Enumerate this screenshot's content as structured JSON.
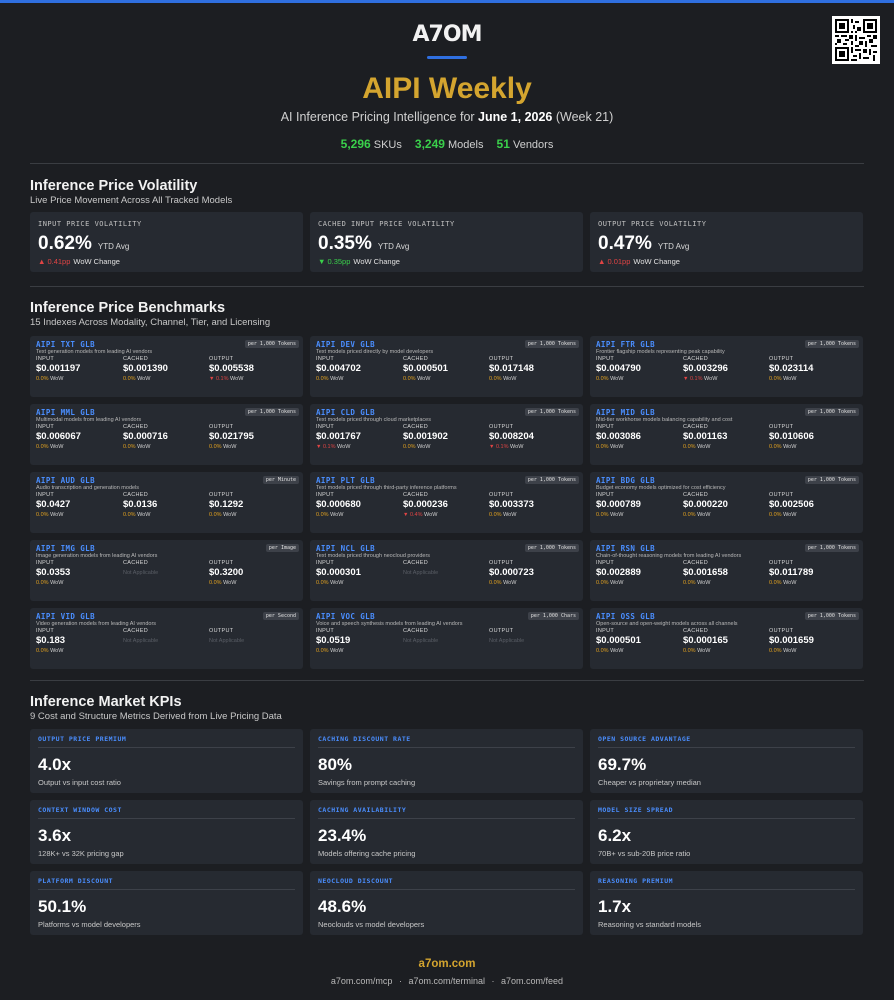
{
  "header": {
    "logo": "A7OM",
    "title": "AIPI Weekly",
    "subtitle_prefix": "AI Inference Pricing Intelligence for ",
    "subtitle_date": "June 1, 2026",
    "subtitle_suffix": " (Week 21)",
    "stats": [
      {
        "num": "5,296",
        "label": "SKUs"
      },
      {
        "num": "3,249",
        "label": "Models"
      },
      {
        "num": "51",
        "label": "Vendors"
      }
    ]
  },
  "volatility": {
    "title": "Inference Price Volatility",
    "subtitle": "Live Price Movement Across All Tracked Models",
    "cards": [
      {
        "label": "INPUT PRICE VOLATILITY",
        "value": "0.62%",
        "ytd": "YTD Avg",
        "arrow": "▲",
        "change": "0.41pp",
        "dir": "up",
        "wow": "WoW Change"
      },
      {
        "label": "CACHED INPUT PRICE VOLATILITY",
        "value": "0.35%",
        "ytd": "YTD Avg",
        "arrow": "▼",
        "change": "0.35pp",
        "dir": "down",
        "wow": "WoW Change"
      },
      {
        "label": "OUTPUT PRICE VOLATILITY",
        "value": "0.47%",
        "ytd": "YTD Avg",
        "arrow": "▲",
        "change": "0.01pp",
        "dir": "up",
        "wow": "WoW Change"
      }
    ]
  },
  "benchmarks": {
    "title": "Inference Price Benchmarks",
    "subtitle": "15 Indexes Across Modality, Channel, Tier, and Licensing",
    "col_labels": [
      "INPUT",
      "CACHED",
      "OUTPUT"
    ],
    "cards": [
      {
        "name": "AIPI TXT GLB",
        "badge": "per 1,000 Tokens",
        "desc": "Text generation models from leading AI vendors",
        "cols": [
          {
            "v": "$0.001197",
            "c": "0.0% WoW",
            "d": "flat"
          },
          {
            "v": "$0.001390",
            "c": "0.0% WoW",
            "d": "flat"
          },
          {
            "v": "$0.005538",
            "c": "▼ 0.1% WoW",
            "d": "up"
          }
        ]
      },
      {
        "name": "AIPI DEV GLB",
        "badge": "per 1,000 Tokens",
        "desc": "Text models priced directly by model developers",
        "cols": [
          {
            "v": "$0.004702",
            "c": "0.0% WoW",
            "d": "flat"
          },
          {
            "v": "$0.000501",
            "c": "0.0% WoW",
            "d": "flat"
          },
          {
            "v": "$0.017148",
            "c": "0.0% WoW",
            "d": "flat"
          }
        ]
      },
      {
        "name": "AIPI FTR GLB",
        "badge": "per 1,000 Tokens",
        "desc": "Frontier flagship models representing peak capability",
        "cols": [
          {
            "v": "$0.004790",
            "c": "0.0% WoW",
            "d": "flat"
          },
          {
            "v": "$0.003296",
            "c": "▼ 0.1% WoW",
            "d": "up"
          },
          {
            "v": "$0.023114",
            "c": "0.0% WoW",
            "d": "flat"
          }
        ]
      },
      {
        "name": "AIPI MML GLB",
        "badge": "per 1,000 Tokens",
        "desc": "Multimodal models from leading AI vendors",
        "cols": [
          {
            "v": "$0.006067",
            "c": "0.0% WoW",
            "d": "flat"
          },
          {
            "v": "$0.000716",
            "c": "0.0% WoW",
            "d": "flat"
          },
          {
            "v": "$0.021795",
            "c": "0.0% WoW",
            "d": "flat"
          }
        ]
      },
      {
        "name": "AIPI CLD GLB",
        "badge": "per 1,000 Tokens",
        "desc": "Text models priced through cloud marketplaces",
        "cols": [
          {
            "v": "$0.001767",
            "c": "▼ 0.1% WoW",
            "d": "up"
          },
          {
            "v": "$0.001902",
            "c": "0.0% WoW",
            "d": "flat"
          },
          {
            "v": "$0.008204",
            "c": "▼ 0.1% WoW",
            "d": "up"
          }
        ]
      },
      {
        "name": "AIPI MID GLB",
        "badge": "per 1,000 Tokens",
        "desc": "Mid-tier workhorse models balancing capability and cost",
        "cols": [
          {
            "v": "$0.003086",
            "c": "0.0% WoW",
            "d": "flat"
          },
          {
            "v": "$0.001163",
            "c": "0.0% WoW",
            "d": "flat"
          },
          {
            "v": "$0.010606",
            "c": "0.0% WoW",
            "d": "flat"
          }
        ]
      },
      {
        "name": "AIPI AUD GLB",
        "badge": "per Minute",
        "desc": "Audio transcription and generation models",
        "cols": [
          {
            "v": "$0.0427",
            "c": "0.0% WoW",
            "d": "flat"
          },
          {
            "v": "$0.0136",
            "c": "0.0% WoW",
            "d": "flat"
          },
          {
            "v": "$0.1292",
            "c": "0.0% WoW",
            "d": "flat"
          }
        ]
      },
      {
        "name": "AIPI PLT GLB",
        "badge": "per 1,000 Tokens",
        "desc": "Text models priced through third-party inference platforms",
        "cols": [
          {
            "v": "$0.000680",
            "c": "0.0% WoW",
            "d": "flat"
          },
          {
            "v": "$0.000236",
            "c": "▼ 0.4% WoW",
            "d": "up"
          },
          {
            "v": "$0.003373",
            "c": "0.0% WoW",
            "d": "flat"
          }
        ]
      },
      {
        "name": "AIPI BDG GLB",
        "badge": "per 1,000 Tokens",
        "desc": "Budget economy models optimized for cost efficiency",
        "cols": [
          {
            "v": "$0.000789",
            "c": "0.0% WoW",
            "d": "flat"
          },
          {
            "v": "$0.000220",
            "c": "0.0% WoW",
            "d": "flat"
          },
          {
            "v": "$0.002506",
            "c": "0.0% WoW",
            "d": "flat"
          }
        ]
      },
      {
        "name": "AIPI IMG GLB",
        "badge": "per Image",
        "desc": "Image generation models from leading AI vendors",
        "cols": [
          {
            "v": "$0.0353",
            "c": "0.0% WoW",
            "d": "flat"
          },
          {
            "v": "Not Applicable",
            "c": "",
            "d": "na"
          },
          {
            "v": "$0.3200",
            "c": "0.0% WoW",
            "d": "flat"
          }
        ]
      },
      {
        "name": "AIPI NCL GLB",
        "badge": "per 1,000 Tokens",
        "desc": "Text models priced through neocloud providers",
        "cols": [
          {
            "v": "$0.000301",
            "c": "0.0% WoW",
            "d": "flat"
          },
          {
            "v": "Not Applicable",
            "c": "",
            "d": "na"
          },
          {
            "v": "$0.000723",
            "c": "0.0% WoW",
            "d": "flat"
          }
        ]
      },
      {
        "name": "AIPI RSN GLB",
        "badge": "per 1,000 Tokens",
        "desc": "Chain-of-thought reasoning models from leading AI vendors",
        "cols": [
          {
            "v": "$0.002889",
            "c": "0.0% WoW",
            "d": "flat"
          },
          {
            "v": "$0.001658",
            "c": "0.0% WoW",
            "d": "flat"
          },
          {
            "v": "$0.011789",
            "c": "0.0% WoW",
            "d": "flat"
          }
        ]
      },
      {
        "name": "AIPI VID GLB",
        "badge": "per Second",
        "desc": "Video generation models from leading AI vendors",
        "cols": [
          {
            "v": "$0.183",
            "c": "0.0% WoW",
            "d": "flat"
          },
          {
            "v": "Not Applicable",
            "c": "",
            "d": "na"
          },
          {
            "v": "Not Applicable",
            "c": "",
            "d": "na"
          }
        ]
      },
      {
        "name": "AIPI VOC GLB",
        "badge": "per 1,000 Chars",
        "desc": "Voice and speech synthesis models from leading AI vendors",
        "cols": [
          {
            "v": "$0.0519",
            "c": "0.0% WoW",
            "d": "flat"
          },
          {
            "v": "Not Applicable",
            "c": "",
            "d": "na"
          },
          {
            "v": "Not Applicable",
            "c": "",
            "d": "na"
          }
        ]
      },
      {
        "name": "AIPI OSS GLB",
        "badge": "per 1,000 Tokens",
        "desc": "Open-source and open-weight models across all channels",
        "cols": [
          {
            "v": "$0.000501",
            "c": "0.0% WoW",
            "d": "flat"
          },
          {
            "v": "$0.000165",
            "c": "0.0% WoW",
            "d": "flat"
          },
          {
            "v": "$0.001659",
            "c": "0.0% WoW",
            "d": "flat"
          }
        ]
      }
    ]
  },
  "kpis": {
    "title": "Inference Market KPIs",
    "subtitle": "9 Cost and Structure Metrics Derived from Live Pricing Data",
    "cards": [
      {
        "name": "OUTPUT PRICE PREMIUM",
        "value": "4.0x",
        "desc": "Output vs input cost ratio"
      },
      {
        "name": "CACHING DISCOUNT RATE",
        "value": "80%",
        "desc": "Savings from prompt caching"
      },
      {
        "name": "OPEN SOURCE ADVANTAGE",
        "value": "69.7%",
        "desc": "Cheaper vs proprietary median"
      },
      {
        "name": "CONTEXT WINDOW COST",
        "value": "3.6x",
        "desc": "128K+ vs 32K pricing gap"
      },
      {
        "name": "CACHING AVAILABILITY",
        "value": "23.4%",
        "desc": "Models offering cache pricing"
      },
      {
        "name": "MODEL SIZE SPREAD",
        "value": "6.2x",
        "desc": "70B+ vs sub-20B price ratio"
      },
      {
        "name": "PLATFORM DISCOUNT",
        "value": "50.1%",
        "desc": "Platforms vs model developers"
      },
      {
        "name": "NEOCLOUD DISCOUNT",
        "value": "48.6%",
        "desc": "Neoclouds vs model developers"
      },
      {
        "name": "REASONING PREMIUM",
        "value": "1.7x",
        "desc": "Reasoning vs standard models"
      }
    ]
  },
  "footer": {
    "site": "a7om.com",
    "links": [
      "a7om.com/mcp",
      "a7om.com/terminal",
      "a7om.com/feed"
    ],
    "separator": "·"
  },
  "colors": {
    "accent": "#2f6fe0",
    "gold": "#d4a52f",
    "up": "#e04444",
    "down": "#3ad04b",
    "flat": "#e0a020",
    "index_blue": "#4a8eff"
  }
}
